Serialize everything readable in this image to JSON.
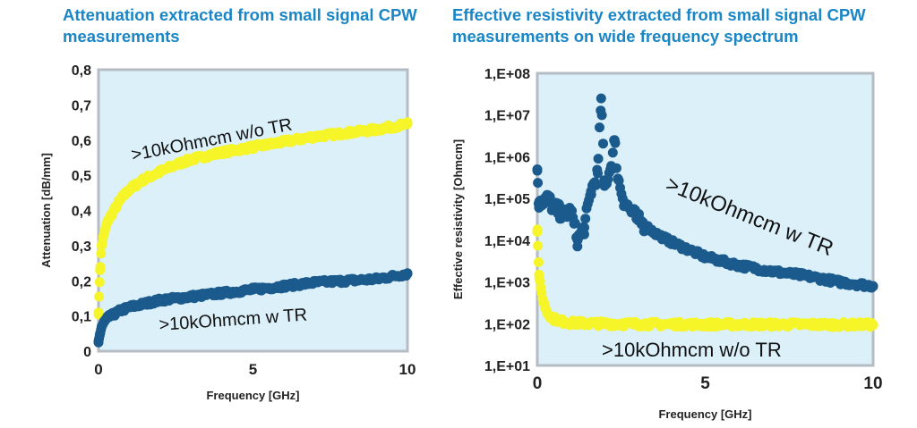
{
  "chart_data": [
    {
      "type": "scatter",
      "title": "Attenuation extracted from small signal CPW measurements",
      "xlabel": "Frequency [GHz]",
      "ylabel": "Attenuation [dB/mm]",
      "xlim": [
        0,
        10
      ],
      "ylim": [
        0,
        0.8
      ],
      "x_ticks": [
        0,
        5,
        10
      ],
      "y_ticks": [
        "0",
        "0,1",
        "0,2",
        "0,3",
        "0,4",
        "0,5",
        "0,6",
        "0,7",
        "0,8"
      ],
      "grid": false,
      "colors": {
        "plot_bg": "#dcf0fa",
        "wo_tr": "#f5f529",
        "w_tr": "#1b5a8c"
      },
      "annotations": [
        ">10kOhmcm w/o TR",
        ">10kOhmcm w TR"
      ],
      "series": [
        {
          "label": ">10kOhmcm w/o TR",
          "x": [
            0,
            0.05,
            0.1,
            0.2,
            0.3,
            0.5,
            0.7,
            1,
            1.5,
            2,
            2.5,
            3,
            4,
            5,
            6,
            7,
            8,
            9,
            10
          ],
          "y": [
            0.11,
            0.23,
            0.3,
            0.34,
            0.37,
            0.4,
            0.43,
            0.46,
            0.49,
            0.51,
            0.53,
            0.545,
            0.565,
            0.58,
            0.595,
            0.61,
            0.62,
            0.63,
            0.645
          ]
        },
        {
          "label": ">10kOhmcm w TR",
          "x": [
            0,
            0.05,
            0.1,
            0.2,
            0.3,
            0.5,
            0.7,
            1,
            1.5,
            2,
            2.5,
            3,
            4,
            5,
            6,
            7,
            8,
            9,
            10
          ],
          "y": [
            0.025,
            0.05,
            0.07,
            0.085,
            0.095,
            0.105,
            0.115,
            0.125,
            0.135,
            0.145,
            0.15,
            0.155,
            0.165,
            0.175,
            0.185,
            0.195,
            0.2,
            0.205,
            0.22
          ]
        }
      ]
    },
    {
      "type": "scatter",
      "title": "Effective resistivity extracted from small signal CPW measurements on wide frequency spectrum",
      "xlabel": "Frequency [GHz]",
      "ylabel": "Effective resistivity [Ohmcm]",
      "xlim": [
        0,
        10
      ],
      "ylim": [
        10,
        100000000
      ],
      "yscale": "log",
      "x_ticks": [
        0,
        5,
        10
      ],
      "y_ticks": [
        "1,E+01",
        "1,E+02",
        "1,E+03",
        "1,E+04",
        "1,E+05",
        "1,E+06",
        "1,E+07",
        "1,E+08"
      ],
      "grid": false,
      "colors": {
        "plot_bg": "#dcf0fa",
        "wo_tr": "#f5f529",
        "w_tr": "#1b5a8c"
      },
      "annotations": [
        ">10kOhmcm w TR",
        ">10kOhmcm w/o TR"
      ],
      "series": [
        {
          "label": ">10kOhmcm w TR",
          "x": [
            0,
            0.05,
            0.1,
            0.3,
            0.5,
            0.8,
            1,
            1.2,
            1.4,
            1.6,
            1.8,
            1.9,
            2,
            2.2,
            2.3,
            2.4,
            2.6,
            3,
            3.5,
            4,
            5,
            6,
            7,
            8,
            9,
            10
          ],
          "y": [
            500000,
            60000,
            90000,
            100000,
            60000,
            40000,
            50000,
            10000,
            20000,
            150000,
            400000,
            25000000,
            200000,
            600000,
            2500000,
            300000,
            80000,
            30000,
            15000,
            9000,
            4000,
            2500,
            1800,
            1400,
            1000,
            800
          ]
        },
        {
          "label": ">10kOhmcm w/o TR",
          "x": [
            0,
            0.05,
            0.1,
            0.2,
            0.3,
            0.5,
            0.7,
            1,
            2,
            3,
            4,
            5,
            6,
            7,
            8,
            9,
            10
          ],
          "y": [
            18000,
            1500,
            700,
            300,
            180,
            130,
            115,
            105,
            100,
            98,
            97,
            96,
            96,
            96,
            96,
            95,
            95
          ]
        }
      ]
    }
  ]
}
